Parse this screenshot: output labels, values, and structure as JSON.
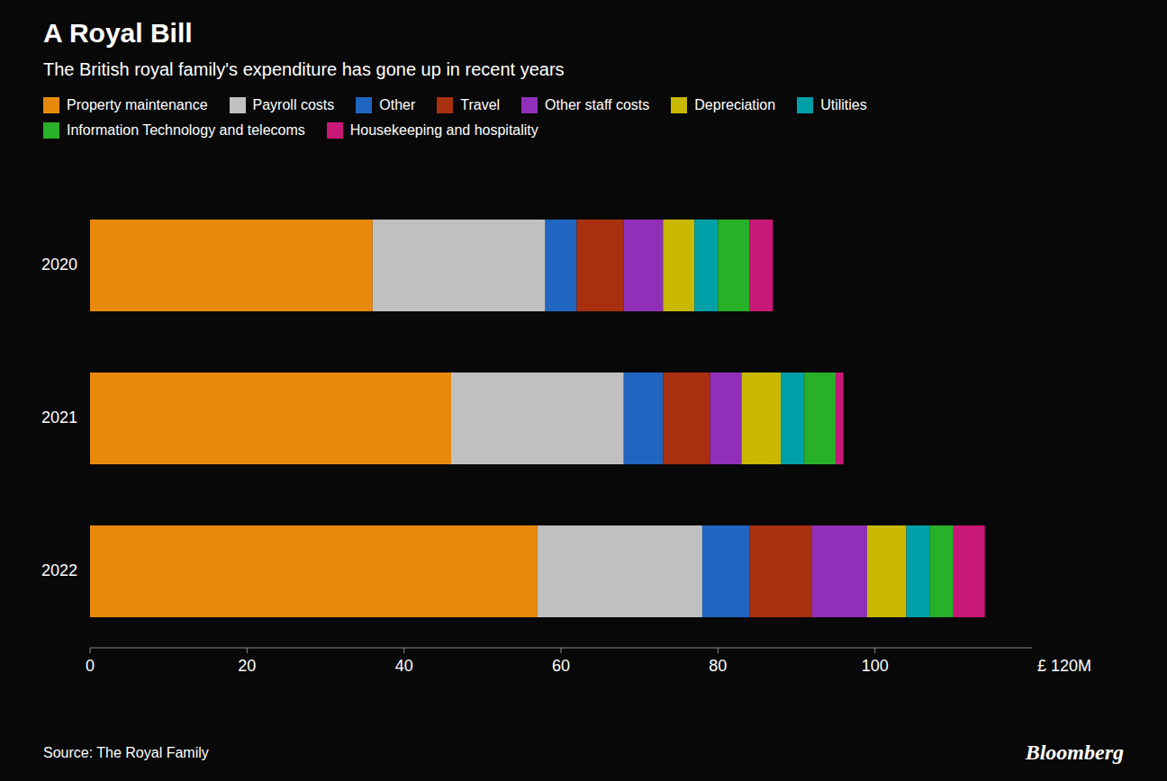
{
  "chart_data": {
    "type": "bar",
    "orientation": "horizontal",
    "stacked": true,
    "title": "A Royal Bill",
    "subtitle": "The British royal family's expenditure has gone up in recent years",
    "xlabel": "£ 120M",
    "source": "Source:  The Royal Family",
    "credit": "Bloomberg",
    "categories": [
      "2022",
      "2021",
      "2020"
    ],
    "series": [
      {
        "name": "Property maintenance",
        "color": "#E8890C",
        "values": [
          57.0,
          46.0,
          36.0
        ]
      },
      {
        "name": "Payroll costs",
        "color": "#C0C0C0",
        "values": [
          21.0,
          22.0,
          22.0
        ]
      },
      {
        "name": "Other",
        "color": "#2065C0",
        "values": [
          6.0,
          5.0,
          4.0
        ]
      },
      {
        "name": "Travel",
        "color": "#A83010",
        "values": [
          8.0,
          6.0,
          6.0
        ]
      },
      {
        "name": "Other staff costs",
        "color": "#9030B8",
        "values": [
          7.0,
          4.0,
          5.0
        ]
      },
      {
        "name": "Depreciation",
        "color": "#C8B800",
        "values": [
          5.0,
          5.0,
          4.0
        ]
      },
      {
        "name": "Utilities",
        "color": "#00A0A8",
        "values": [
          3.0,
          3.0,
          3.0
        ]
      },
      {
        "name": "Information Technology and telecoms",
        "color": "#28B028",
        "values": [
          3.0,
          4.0,
          4.0
        ]
      },
      {
        "name": "Housekeeping and hospitality",
        "color": "#C81878",
        "values": [
          4.0,
          1.0,
          3.0
        ]
      }
    ],
    "xlim": [
      0,
      120
    ],
    "xticks": [
      0,
      20,
      40,
      60,
      80,
      100
    ],
    "grid": false,
    "legend": "top"
  }
}
